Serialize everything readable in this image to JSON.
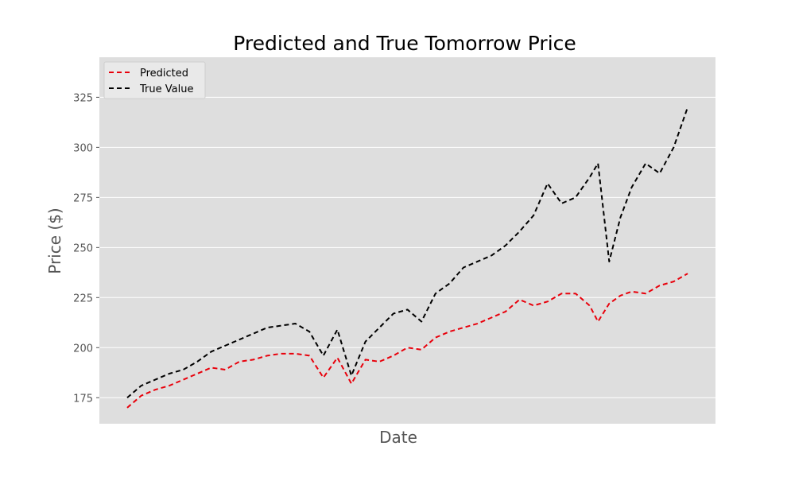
{
  "chart_data": {
    "type": "line",
    "title": "Predicted and True Tomorrow Price",
    "xlabel": "Date",
    "ylabel": "Price ($)",
    "ylim": [
      162,
      345
    ],
    "yticks": [
      175,
      200,
      225,
      250,
      275,
      300,
      325
    ],
    "grid": "horizontal",
    "legend_position": "top-left",
    "x_tick_labels_shown": false,
    "x": [
      0,
      2.5,
      5,
      7.5,
      10,
      12.5,
      15,
      17.5,
      20,
      22.5,
      25,
      27.5,
      30,
      32.5,
      35,
      37.5,
      40,
      42.5,
      45,
      47.5,
      50,
      52.5,
      55,
      57.5,
      60,
      62.5,
      65,
      67.5,
      70,
      72.5,
      75,
      77.5,
      80,
      82.5,
      84,
      86,
      88,
      90,
      92.5,
      95,
      97.5,
      100
    ],
    "series": [
      {
        "name": "Predicted",
        "color": "#e8000b",
        "style": "dashed",
        "values": [
          170,
          176,
          179,
          181,
          184,
          187,
          190,
          189,
          193,
          194,
          196,
          197,
          197,
          196,
          185,
          195,
          182,
          194,
          193,
          196,
          200,
          199,
          205,
          208,
          210,
          212,
          215,
          218,
          224,
          221,
          223,
          227,
          227,
          221,
          213,
          222,
          226,
          228,
          227,
          231,
          233,
          237
        ]
      },
      {
        "name": "True Value",
        "color": "#000000",
        "style": "dashed",
        "values": [
          175,
          181,
          184,
          187,
          189,
          193,
          198,
          201,
          204,
          207,
          210,
          211,
          212,
          208,
          196,
          209,
          186,
          203,
          210,
          217,
          219,
          213,
          227,
          232,
          240,
          243,
          246,
          251,
          258,
          266,
          282,
          272,
          275,
          285,
          292,
          243,
          265,
          280,
          292,
          287,
          300,
          320
        ]
      }
    ]
  }
}
